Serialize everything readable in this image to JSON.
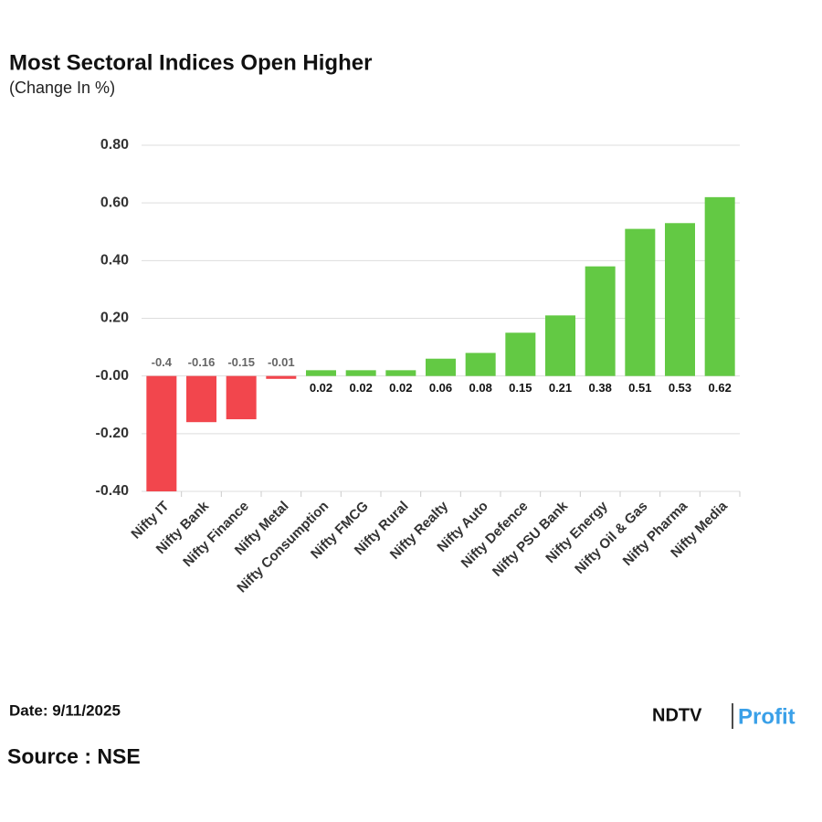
{
  "chart_data": {
    "type": "bar",
    "title": "Most Sectoral Indices Open Higher",
    "subtitle": "(Change In %)",
    "categories": [
      "Nifty IT",
      "Nifty Bank",
      "Nifty Finance",
      "Nifty Metal",
      "Nifty Consumption",
      "Nifty FMCG",
      "Nifty Rural",
      "Nifty Realty",
      "Nifty Auto",
      "Nifty Defence",
      "Nifty PSU Bank",
      "Nifty Energy",
      "Nifty Oil & Gas",
      "Nifty Pharma",
      "Nifty Media"
    ],
    "values": [
      -0.4,
      -0.16,
      -0.15,
      -0.01,
      0.02,
      0.02,
      0.02,
      0.06,
      0.08,
      0.15,
      0.21,
      0.38,
      0.51,
      0.53,
      0.62
    ],
    "positive_color": "#63c944",
    "negative_color": "#f2464d",
    "ylim": [
      -0.4,
      0.8
    ],
    "yticks": [
      {
        "value": 0.8,
        "label": "0.80"
      },
      {
        "value": 0.6,
        "label": "0.60"
      },
      {
        "value": 0.4,
        "label": "0.40"
      },
      {
        "value": 0.2,
        "label": "0.20"
      },
      {
        "value": 0,
        "label": "-0.00"
      },
      {
        "value": -0.2,
        "label": "-0.20"
      },
      {
        "value": -0.4,
        "label": "-0.40"
      }
    ],
    "grid": true
  },
  "footer": {
    "date": "Date: 9/11/2025",
    "source": "Source : NSE",
    "logo_left": "NDTV",
    "logo_right": "Profit"
  }
}
